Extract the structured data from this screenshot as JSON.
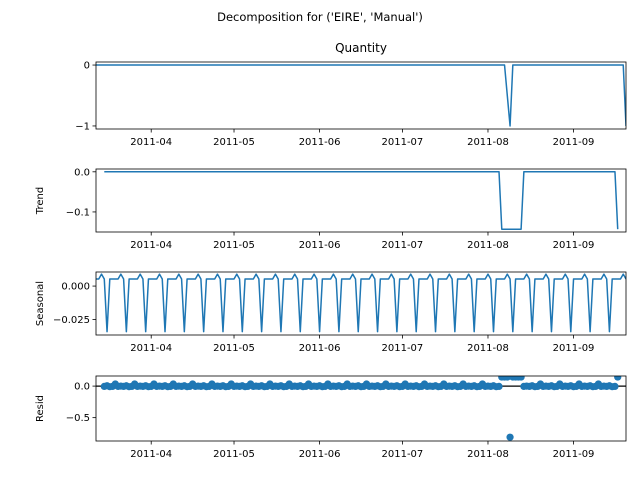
{
  "chart_data": {
    "type": "line",
    "suptitle": "Decomposition for ('EIRE', 'Manual')",
    "line_color": "#1f77b4",
    "x_tick_labels": [
      "2011-04",
      "2011-05",
      "2011-06",
      "2011-07",
      "2011-08",
      "2011-09"
    ],
    "x_tick_dates": [
      "2011-04-01",
      "2011-05-01",
      "2011-06-01",
      "2011-07-01",
      "2011-08-01",
      "2011-09-01"
    ],
    "x_range": [
      "2011-03-12",
      "2011-09-20"
    ],
    "panels": [
      {
        "id": "observed",
        "title": "Quantity",
        "ylabel": "",
        "style": "line",
        "ylim": [
          -1.05,
          0.05
        ],
        "yticks": [
          0,
          -1
        ],
        "ytick_labels": [
          "0",
          "−1"
        ],
        "points": [
          {
            "x": "2011-03-12",
            "y": 0
          },
          {
            "x": "2011-08-07",
            "y": 0
          },
          {
            "x": "2011-08-09",
            "y": -1
          },
          {
            "x": "2011-08-10",
            "y": 0
          },
          {
            "x": "2011-09-19",
            "y": 0
          },
          {
            "x": "2011-09-20",
            "y": -1
          }
        ]
      },
      {
        "id": "trend",
        "title": "",
        "ylabel": "Trend",
        "style": "line",
        "ylim": [
          -0.15,
          0.007
        ],
        "yticks": [
          0.0,
          -0.1
        ],
        "ytick_labels": [
          "0.0",
          "−0.1"
        ],
        "points": [
          {
            "x": "2011-03-15",
            "y": 0
          },
          {
            "x": "2011-08-05",
            "y": 0
          },
          {
            "x": "2011-08-06",
            "y": -0.143
          },
          {
            "x": "2011-08-13",
            "y": -0.143
          },
          {
            "x": "2011-08-14",
            "y": 0
          },
          {
            "x": "2011-09-16",
            "y": 0
          },
          {
            "x": "2011-09-17",
            "y": -0.143
          }
        ]
      },
      {
        "id": "seasonal",
        "title": "",
        "ylabel": "Seasonal",
        "style": "line",
        "ylim": [
          -0.0365,
          0.0105
        ],
        "yticks": [
          0.0,
          -0.025
        ],
        "ytick_labels": [
          "0.000",
          "−0.025"
        ],
        "period_days": 7,
        "first_date": "2011-03-12",
        "cycle": [
          0.0053,
          0.0053,
          0.0089,
          0.0053,
          -0.034,
          0.0053,
          0.0053
        ]
      },
      {
        "id": "resid",
        "title": "",
        "ylabel": "Resid",
        "style": "scatter",
        "ylim": [
          -0.87,
          0.16
        ],
        "yticks": [
          0.0,
          -0.5
        ],
        "ytick_labels": [
          "0.0",
          "−0.5"
        ],
        "zero_line": true,
        "first_date": "2011-03-15",
        "last_date": "2011-09-17",
        "base_cycle": [
          -0.005,
          0.005,
          -0.009,
          -0.005,
          0.034,
          -0.005,
          0.0
        ],
        "special_points": [
          {
            "x": "2011-08-06",
            "y": 0.143
          },
          {
            "x": "2011-08-07",
            "y": 0.143
          },
          {
            "x": "2011-08-08",
            "y": 0.143
          },
          {
            "x": "2011-08-09",
            "y": -0.81
          },
          {
            "x": "2011-08-10",
            "y": 0.143
          },
          {
            "x": "2011-08-11",
            "y": 0.143
          },
          {
            "x": "2011-08-12",
            "y": 0.143
          },
          {
            "x": "2011-08-13",
            "y": 0.143
          },
          {
            "x": "2011-09-17",
            "y": 0.143
          }
        ]
      }
    ]
  }
}
